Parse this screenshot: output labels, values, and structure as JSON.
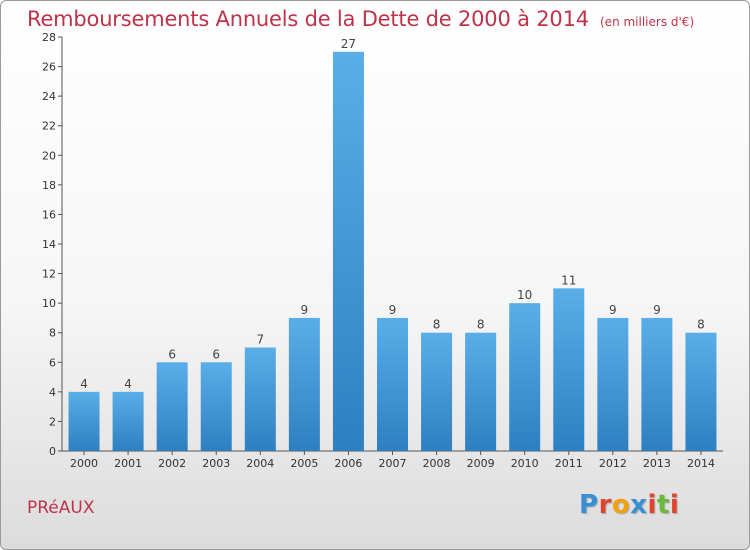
{
  "header": {
    "title": "Remboursements Annuels de la Dette de 2000 à 2014",
    "unit": "(en milliers d'€)"
  },
  "footer": {
    "commune": "PRéAUX",
    "logo_text": "Proxiti",
    "logo_colors": [
      "#3a8fd4",
      "#e0452c",
      "#f2a20c",
      "#3a8fd4",
      "#e0452c",
      "#6cb93a",
      "#e0452c"
    ]
  },
  "chart_data": {
    "type": "bar",
    "categories": [
      "2000",
      "2001",
      "2002",
      "2003",
      "2004",
      "2005",
      "2006",
      "2007",
      "2008",
      "2009",
      "2010",
      "2011",
      "2012",
      "2013",
      "2014"
    ],
    "values": [
      4,
      4,
      6,
      6,
      7,
      9,
      27,
      9,
      8,
      8,
      10,
      11,
      9,
      9,
      8
    ],
    "data_labels": [
      "4",
      "4",
      "6",
      "6",
      "7",
      "9",
      "27",
      "9",
      "8",
      "8",
      "10",
      "11",
      "9",
      "9",
      "8"
    ],
    "ylim": [
      0,
      28
    ],
    "yticks": [
      0,
      2,
      4,
      6,
      8,
      10,
      12,
      14,
      16,
      18,
      20,
      22,
      24,
      26,
      28
    ],
    "grid": false,
    "bar_color_top": "#5aaee8",
    "bar_color_bottom": "#2e7fc0",
    "title_color": "#c0324a"
  }
}
